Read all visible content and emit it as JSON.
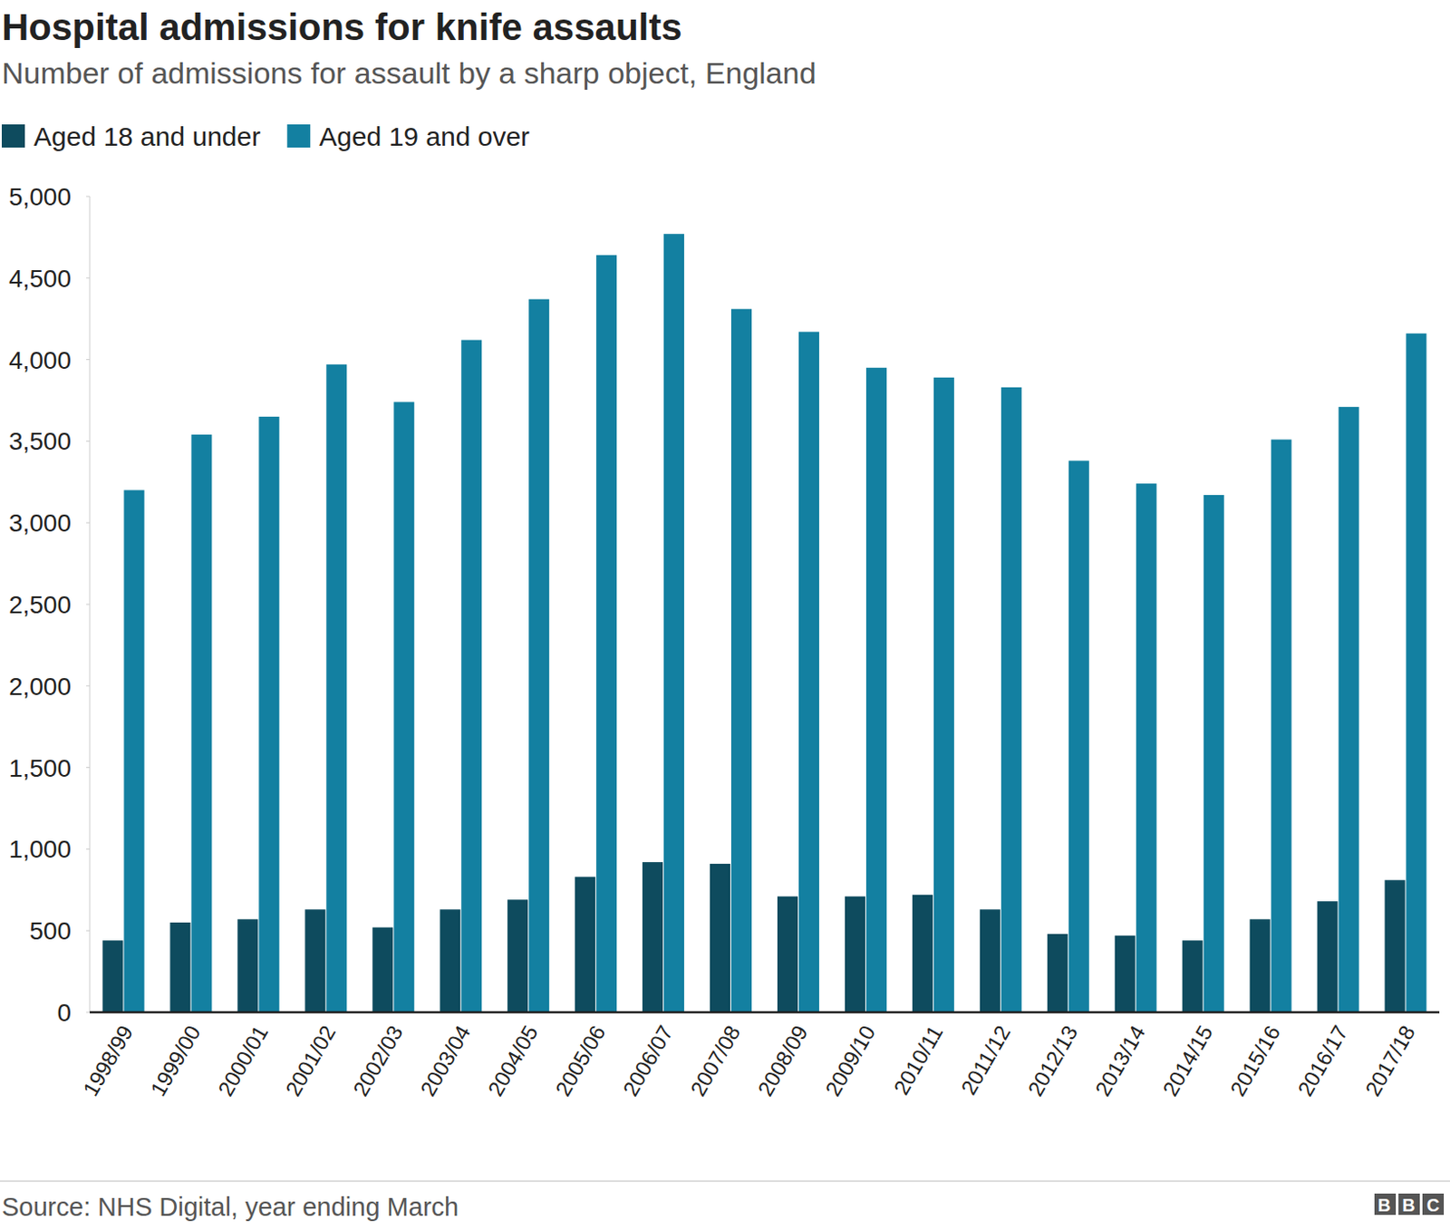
{
  "chart_data": {
    "type": "bar",
    "title": "Hospital admissions for knife assaults",
    "subtitle": "Number of admissions for assault by a sharp object, England",
    "source": "Source: NHS Digital, year ending March",
    "logo": "BBC",
    "categories": [
      "1998/99",
      "1999/00",
      "2000/01",
      "2001/02",
      "2002/03",
      "2003/04",
      "2004/05",
      "2005/06",
      "2006/07",
      "2007/08",
      "2008/09",
      "2009/10",
      "2010/11",
      "2011/12",
      "2012/13",
      "2013/14",
      "2014/15",
      "2015/16",
      "2016/17",
      "2017/18"
    ],
    "series": [
      {
        "name": "Aged 18 and under",
        "color": "#0e4b5e",
        "values": [
          440,
          550,
          570,
          630,
          520,
          630,
          690,
          830,
          920,
          910,
          710,
          710,
          720,
          630,
          480,
          470,
          440,
          570,
          680,
          810
        ]
      },
      {
        "name": "Aged 19 and over",
        "color": "#1380a1",
        "values": [
          3200,
          3540,
          3650,
          3970,
          3740,
          4120,
          4370,
          4640,
          4770,
          4310,
          4170,
          3950,
          3890,
          3830,
          3380,
          3240,
          3170,
          3510,
          3710,
          4160
        ]
      }
    ],
    "ylim": [
      0,
      5000
    ],
    "yticks": [
      0,
      500,
      {
        "value": 1000,
        "label": "1,000"
      },
      {
        "value": 1500,
        "label": "1,500"
      },
      {
        "value": 2000,
        "label": "2,000"
      },
      {
        "value": 2500,
        "label": "2,500"
      },
      {
        "value": 3000,
        "label": "3,000"
      },
      {
        "value": 3500,
        "label": "3,500"
      },
      {
        "value": 4000,
        "label": "4,000"
      },
      {
        "value": 4500,
        "label": "4,500"
      },
      {
        "value": 5000,
        "label": "5,000"
      }
    ],
    "grid": false,
    "legend": "top-left"
  }
}
